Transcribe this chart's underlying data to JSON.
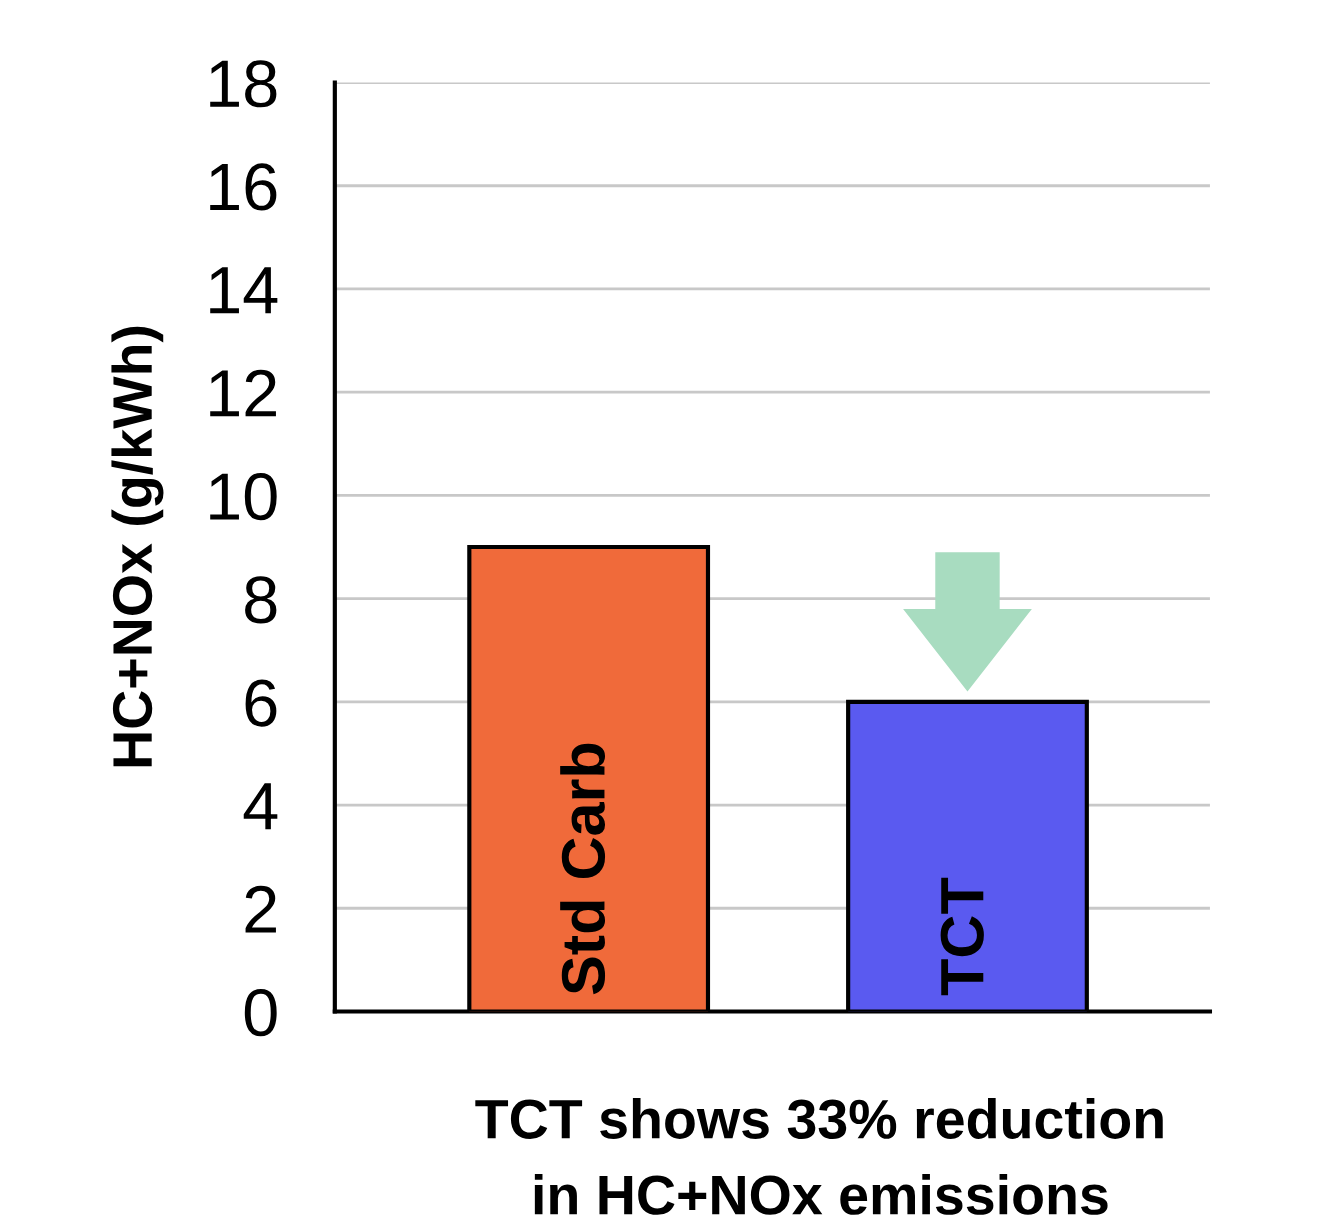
{
  "chart_data": {
    "type": "bar",
    "ylabel": "HC+NOx (g/kWh)",
    "categories": [
      "Std Carb",
      "TCT"
    ],
    "values": [
      9.0,
      6.0
    ],
    "colors": [
      "#f06a3a",
      "#5a5af0"
    ],
    "ylim": [
      0,
      18
    ],
    "yticks": [
      0,
      2,
      4,
      6,
      8,
      10,
      12,
      14,
      16,
      18
    ],
    "grid": "y",
    "annotations": [
      "TCT shows 33% reduction\nin HC+NOx emissions"
    ]
  }
}
